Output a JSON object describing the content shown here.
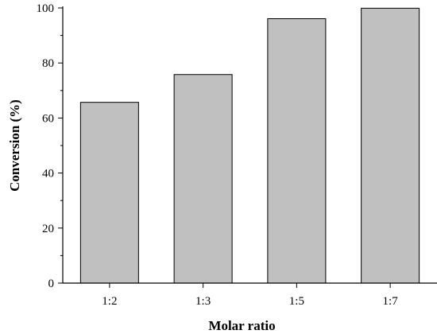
{
  "chart_data": {
    "type": "bar",
    "categories": [
      "1:2",
      "1:3",
      "1:5",
      "1:7"
    ],
    "values": [
      65.7,
      75.8,
      96.1,
      99.9
    ],
    "xlabel": "Molar ratio",
    "ylabel": "Conversion (%)",
    "ylim": [
      0,
      100
    ],
    "yticks": [
      0,
      20,
      40,
      60,
      80,
      100
    ],
    "grid": false,
    "bar_color": "#c0c0c0",
    "edge_color": "#000000"
  }
}
